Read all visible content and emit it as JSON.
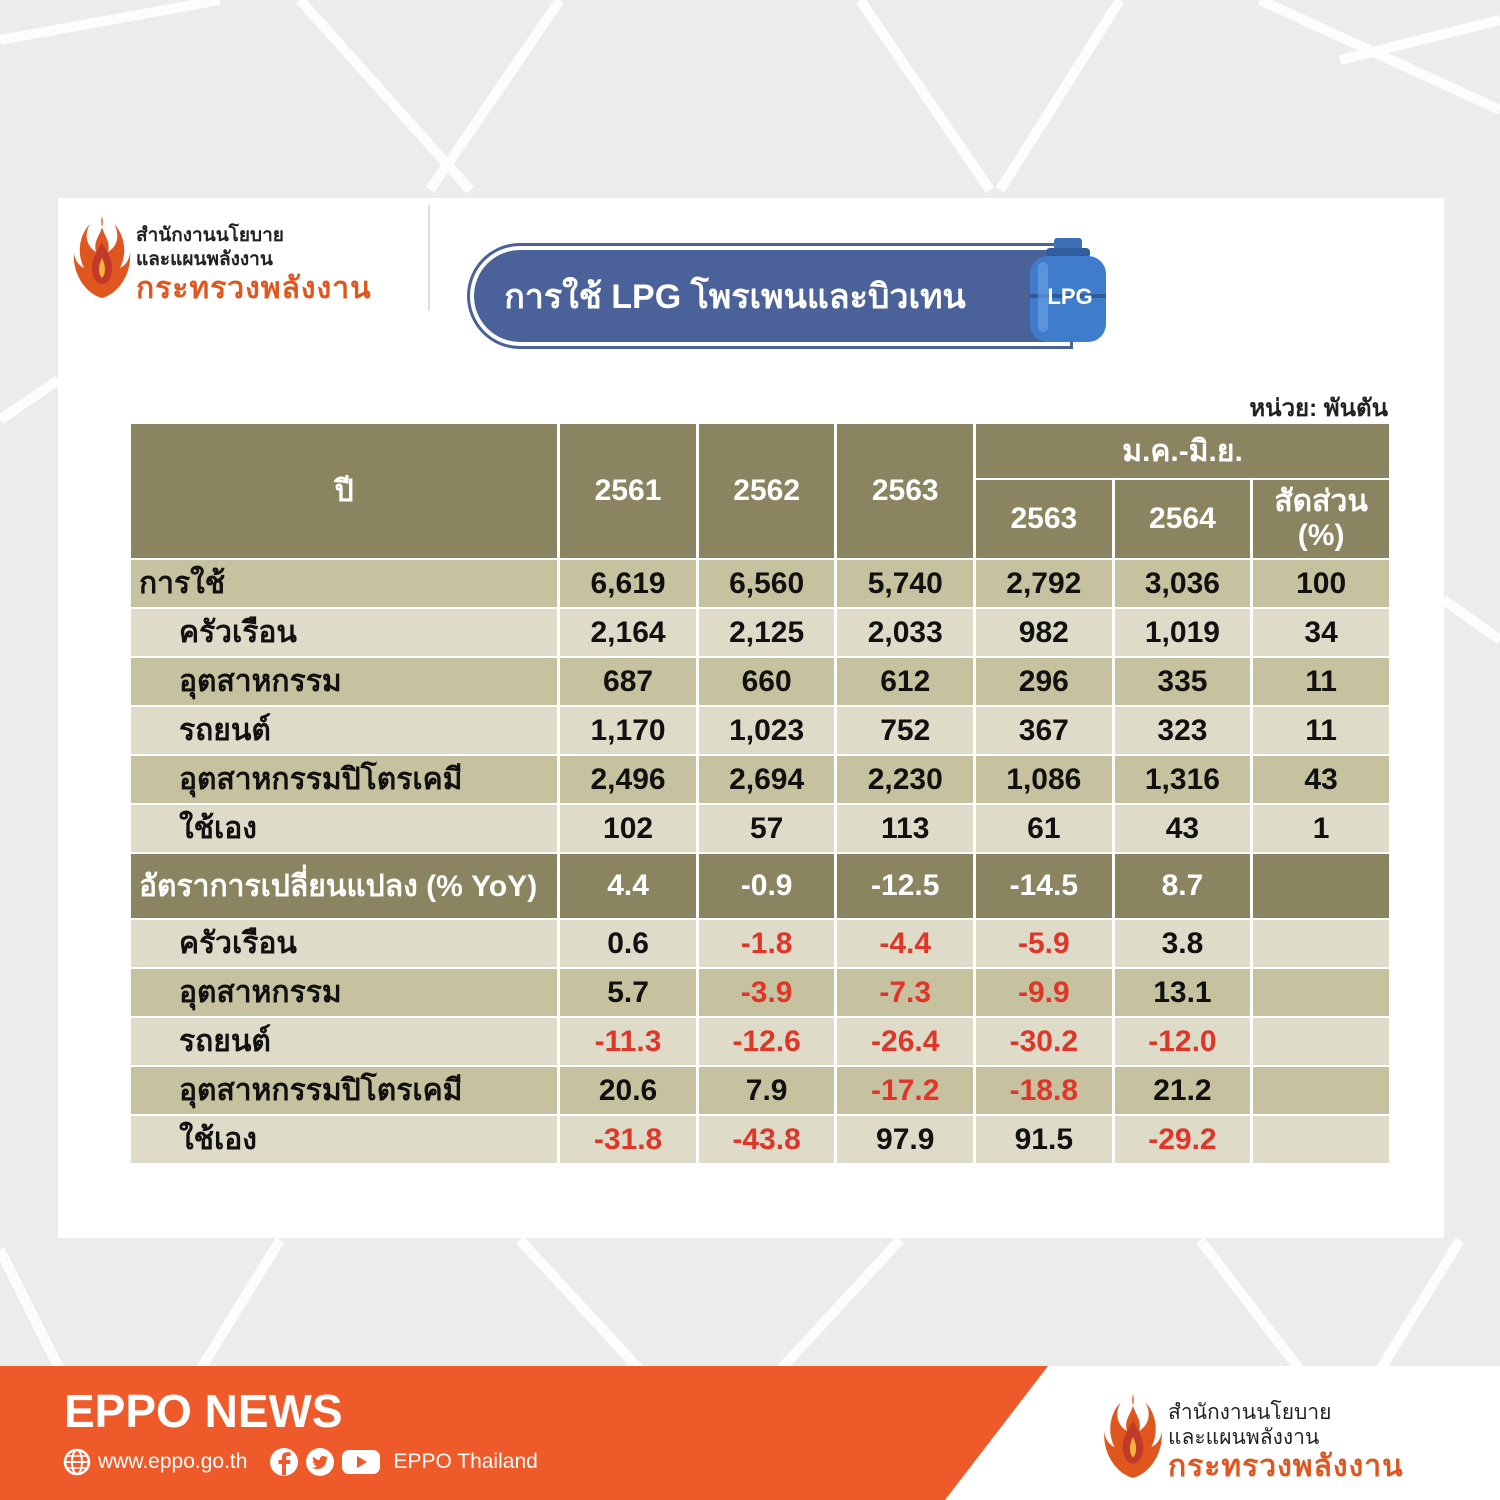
{
  "header": {
    "org_line1": "สำนักงานนโยบาย",
    "org_line2": "และแผนพลังงาน",
    "org_line3": "กระทรวงพลังงาน",
    "title": "การใช้ LPG โพรเพนและบิวเทน",
    "tank_label": "LPG"
  },
  "unit": "หน่วย: พันตัน",
  "table": {
    "col_year": "ปี",
    "years": [
      "2561",
      "2562",
      "2563"
    ],
    "period_label": "ม.ค.-มิ.ย.",
    "period_years": [
      "2563",
      "2564"
    ],
    "share_label": "สัดส่วน (%)",
    "usage": {
      "label": "การใช้",
      "values": [
        "6,619",
        "6,560",
        "5,740",
        "2,792",
        "3,036",
        "100"
      ],
      "rows": [
        {
          "label": "ครัวเรือน",
          "values": [
            "2,164",
            "2,125",
            "2,033",
            "982",
            "1,019",
            "34"
          ]
        },
        {
          "label": "อุตสาหกรรม",
          "values": [
            "687",
            "660",
            "612",
            "296",
            "335",
            "11"
          ]
        },
        {
          "label": "รถยนต์",
          "values": [
            "1,170",
            "1,023",
            "752",
            "367",
            "323",
            "11"
          ]
        },
        {
          "label": "อุตสาหกรรมปิโตรเคมี",
          "values": [
            "2,496",
            "2,694",
            "2,230",
            "1,086",
            "1,316",
            "43"
          ]
        },
        {
          "label": "ใช้เอง",
          "values": [
            "102",
            "57",
            "113",
            "61",
            "43",
            "1"
          ]
        }
      ]
    },
    "change": {
      "label": "อัตราการเปลี่ยนแปลง (% YoY)",
      "values": [
        "4.4",
        "-0.9",
        "-12.5",
        "-14.5",
        "8.7",
        ""
      ],
      "rows": [
        {
          "label": "ครัวเรือน",
          "values": [
            "0.6",
            "-1.8",
            "-4.4",
            "-5.9",
            "3.8",
            ""
          ]
        },
        {
          "label": "อุตสาหกรรม",
          "values": [
            "5.7",
            "-3.9",
            "-7.3",
            "-9.9",
            "13.1",
            ""
          ]
        },
        {
          "label": "รถยนต์",
          "values": [
            "-11.3",
            "-12.6",
            "-26.4",
            "-30.2",
            "-12.0",
            ""
          ]
        },
        {
          "label": "อุตสาหกรรมปิโตรเคมี",
          "values": [
            "20.6",
            "7.9",
            "-17.2",
            "-18.8",
            "21.2",
            ""
          ]
        },
        {
          "label": "ใช้เอง",
          "values": [
            "-31.8",
            "-43.8",
            "97.9",
            "91.5",
            "-29.2",
            ""
          ]
        }
      ]
    }
  },
  "footer": {
    "brand": "EPPO NEWS",
    "website": "www.eppo.go.th",
    "social": "EPPO Thailand",
    "org_line1": "สำนักงานนโยบาย",
    "org_line2": "และแผนพลังงาน",
    "org_line3": "กระทรวงพลังงาน"
  },
  "colors": {
    "header_bg": "#8a8460",
    "row_dark": "#c6c2a0",
    "row_light": "#dedcc8",
    "negative": "#e0362a",
    "title_bg": "#4a6199",
    "footer_orange": "#ee5a2a"
  }
}
